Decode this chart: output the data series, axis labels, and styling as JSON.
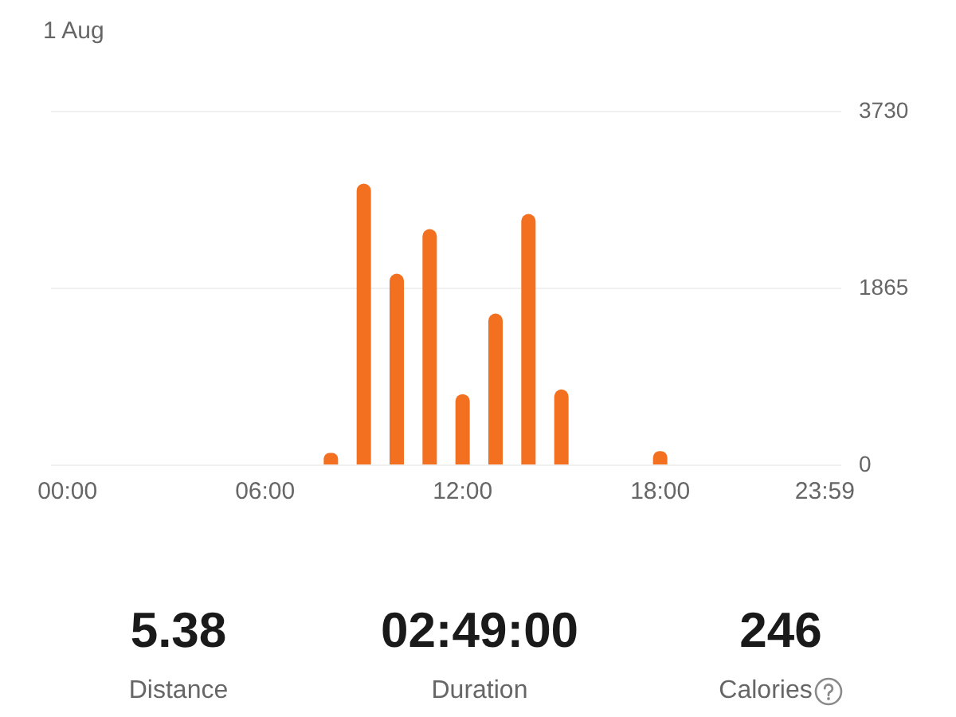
{
  "chart_data": [
    {
      "type": "bar",
      "title": "1 Aug",
      "categories": [
        "00:00",
        null,
        null,
        null,
        null,
        null,
        "06:00",
        null,
        null,
        null,
        null,
        null,
        "12:00",
        null,
        null,
        null,
        null,
        null,
        "18:00",
        null,
        null,
        null,
        null,
        "23:59"
      ],
      "values": [
        0,
        0,
        0,
        0,
        0,
        0,
        0,
        0,
        130,
        2970,
        2020,
        2490,
        750,
        1600,
        2650,
        800,
        0,
        0,
        150,
        0,
        0,
        0,
        0,
        0
      ],
      "color": "#f37021",
      "ylim": [
        0,
        3730
      ],
      "yticks": [
        0,
        1865,
        3730
      ],
      "grid": "y"
    },
    {
      "type": "other",
      "categories": [
        "Distance",
        "Duration",
        "Calories"
      ],
      "value_labels": [
        "5.38",
        "02:49:00",
        "246"
      ]
    }
  ]
}
